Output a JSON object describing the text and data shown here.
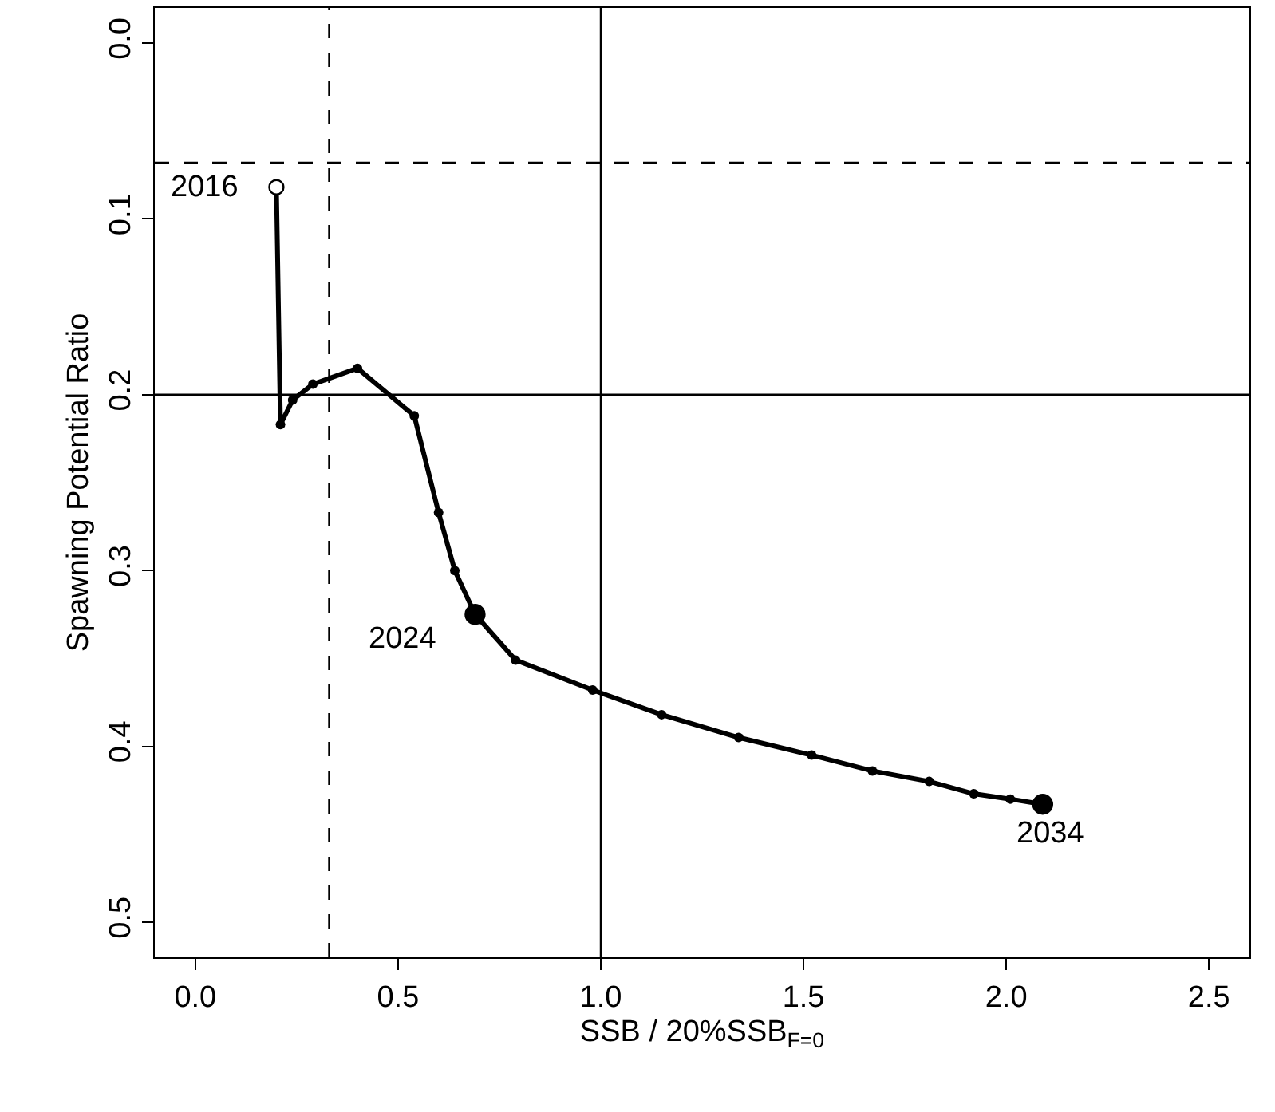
{
  "chart_data": {
    "type": "line",
    "xlabel": "SSB / 20%SSB$_{F=0}$",
    "ylabel": "Spawning Potential Ratio",
    "xlim": [
      -0.1,
      2.6
    ],
    "ylim": [
      0.52,
      -0.02
    ],
    "xticks": [
      {
        "value": 0,
        "label": "0.0"
      },
      {
        "value": 0.5,
        "label": "0.5"
      },
      {
        "value": 1,
        "label": "1.0"
      },
      {
        "value": 1.5,
        "label": "1.5"
      },
      {
        "value": 2,
        "label": "2.0"
      },
      {
        "value": 2.5,
        "label": "2.5"
      }
    ],
    "yticks": [
      {
        "value": 0,
        "label": "0.0"
      },
      {
        "value": 0.1,
        "label": "0.1"
      },
      {
        "value": 0.2,
        "label": "0.2"
      },
      {
        "value": 0.3,
        "label": "0.3"
      },
      {
        "value": 0.4,
        "label": "0.4"
      },
      {
        "value": 0.5,
        "label": "0.5"
      }
    ],
    "grid": false,
    "marker": "circle",
    "line_style": "solid",
    "series": [
      {
        "color": "#000000",
        "x": [
          0.2,
          0.21,
          0.24,
          0.29,
          0.4,
          0.54,
          0.6,
          0.64,
          0.69,
          0.79,
          0.98,
          1.15,
          1.34,
          1.52,
          1.67,
          1.81,
          1.92,
          2.01,
          2.09
        ],
        "values": [
          0.082,
          0.217,
          0.203,
          0.194,
          0.185,
          0.212,
          0.267,
          0.3,
          0.325,
          0.351,
          0.368,
          0.382,
          0.395,
          0.405,
          0.414,
          0.42,
          0.427,
          0.43,
          0.433
        ]
      },
      {
        "type": "scatter",
        "color": "#ffffff",
        "x": [
          0.2
        ],
        "values": [
          0.082
        ]
      },
      {
        "type": "scatter",
        "color": "#000000",
        "x": [
          0.69,
          2.09
        ],
        "values": [
          0.325,
          0.433
        ]
      }
    ],
    "ref_lines": [
      {
        "axis": "x",
        "value": 0.33,
        "line_style": "dashed",
        "color": "#000000"
      },
      {
        "axis": "x",
        "value": 1,
        "line_style": "solid",
        "color": "#000000"
      },
      {
        "axis": "y",
        "value": 0.2,
        "line_style": "solid",
        "color": "#000000"
      },
      {
        "axis": "y",
        "value": 0.068,
        "line_style": "dashed",
        "color": "#000000"
      }
    ],
    "annotations": [
      {
        "text": "2016",
        "x": 0.2,
        "y": 0.082
      },
      {
        "text": "2024",
        "x": 0.69,
        "y": 0.325
      },
      {
        "text": "2034",
        "x": 2.09,
        "y": 0.433
      }
    ]
  }
}
